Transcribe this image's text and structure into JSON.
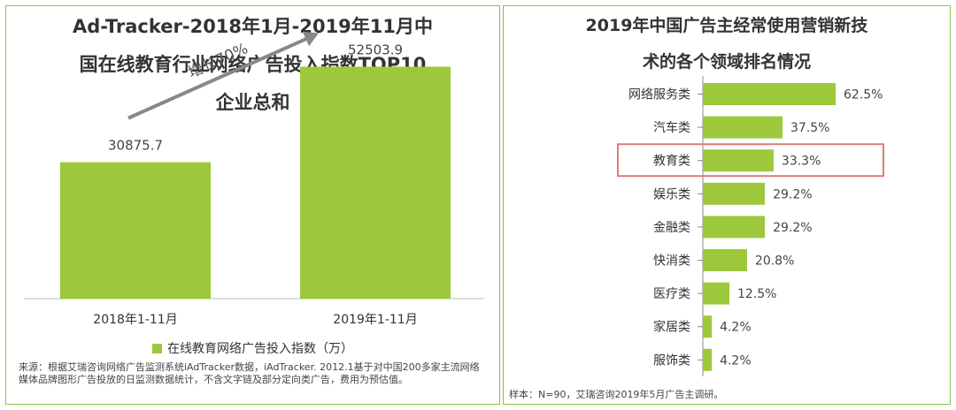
{
  "left": {
    "title_lines": [
      "Ad-Tracker-2018年1月-2019年11月中",
      "国在线教育行业网络广告投入指数TOP10",
      "企业总和"
    ],
    "growth_label": "增长70%",
    "legend_label": "在线教育网络广告投入指数（万）",
    "source_note": "来源：根据艾瑞咨询网络广告监测系统iAdTracker数据，iAdTracker. 2012.1基于对中国200多家主流网络媒体品牌图形广告投放的日监测数据统计，不含文字链及部分定向类广告，费用为预估值。"
  },
  "right": {
    "title_lines": [
      "2019年中国广告主经常使用营销新技",
      "术的各个领域排名情况"
    ],
    "sample_note": "样本：N=90，艾瑞咨询2019年5月广告主调研。",
    "highlight_category": "教育类"
  },
  "colors": {
    "bar": "#9dc83b",
    "highlight": "#e07a7a",
    "border": "#8fc14a"
  },
  "chart_data": [
    {
      "type": "bar",
      "title": "Ad-Tracker-2018年1月-2019年11月中国在线教育行业网络广告投入指数TOP10企业总和",
      "categories": [
        "2018年1-11月",
        "2019年1-11月"
      ],
      "series": [
        {
          "name": "在线教育网络广告投入指数（万）",
          "values": [
            30875.7,
            52503.9
          ]
        }
      ],
      "value_labels": [
        "30875.7",
        "52503.9"
      ],
      "annotation": "增长70%",
      "ylim": [
        0,
        60000
      ],
      "grid": false,
      "legend": "bottom"
    },
    {
      "type": "bar",
      "orientation": "horizontal",
      "title": "2019年中国广告主经常使用营销新技术的各个领域排名情况",
      "categories": [
        "网络服务类",
        "汽车类",
        "教育类",
        "娱乐类",
        "金融类",
        "快消类",
        "医疗类",
        "家居类",
        "服饰类"
      ],
      "values": [
        62.5,
        37.5,
        33.3,
        29.2,
        29.2,
        20.8,
        12.5,
        4.2,
        4.2
      ],
      "value_labels": [
        "62.5%",
        "37.5%",
        "33.3%",
        "29.2%",
        "29.2%",
        "20.8%",
        "12.5%",
        "4.2%",
        "4.2%"
      ],
      "xlim": [
        0,
        70
      ],
      "grid": false
    }
  ]
}
